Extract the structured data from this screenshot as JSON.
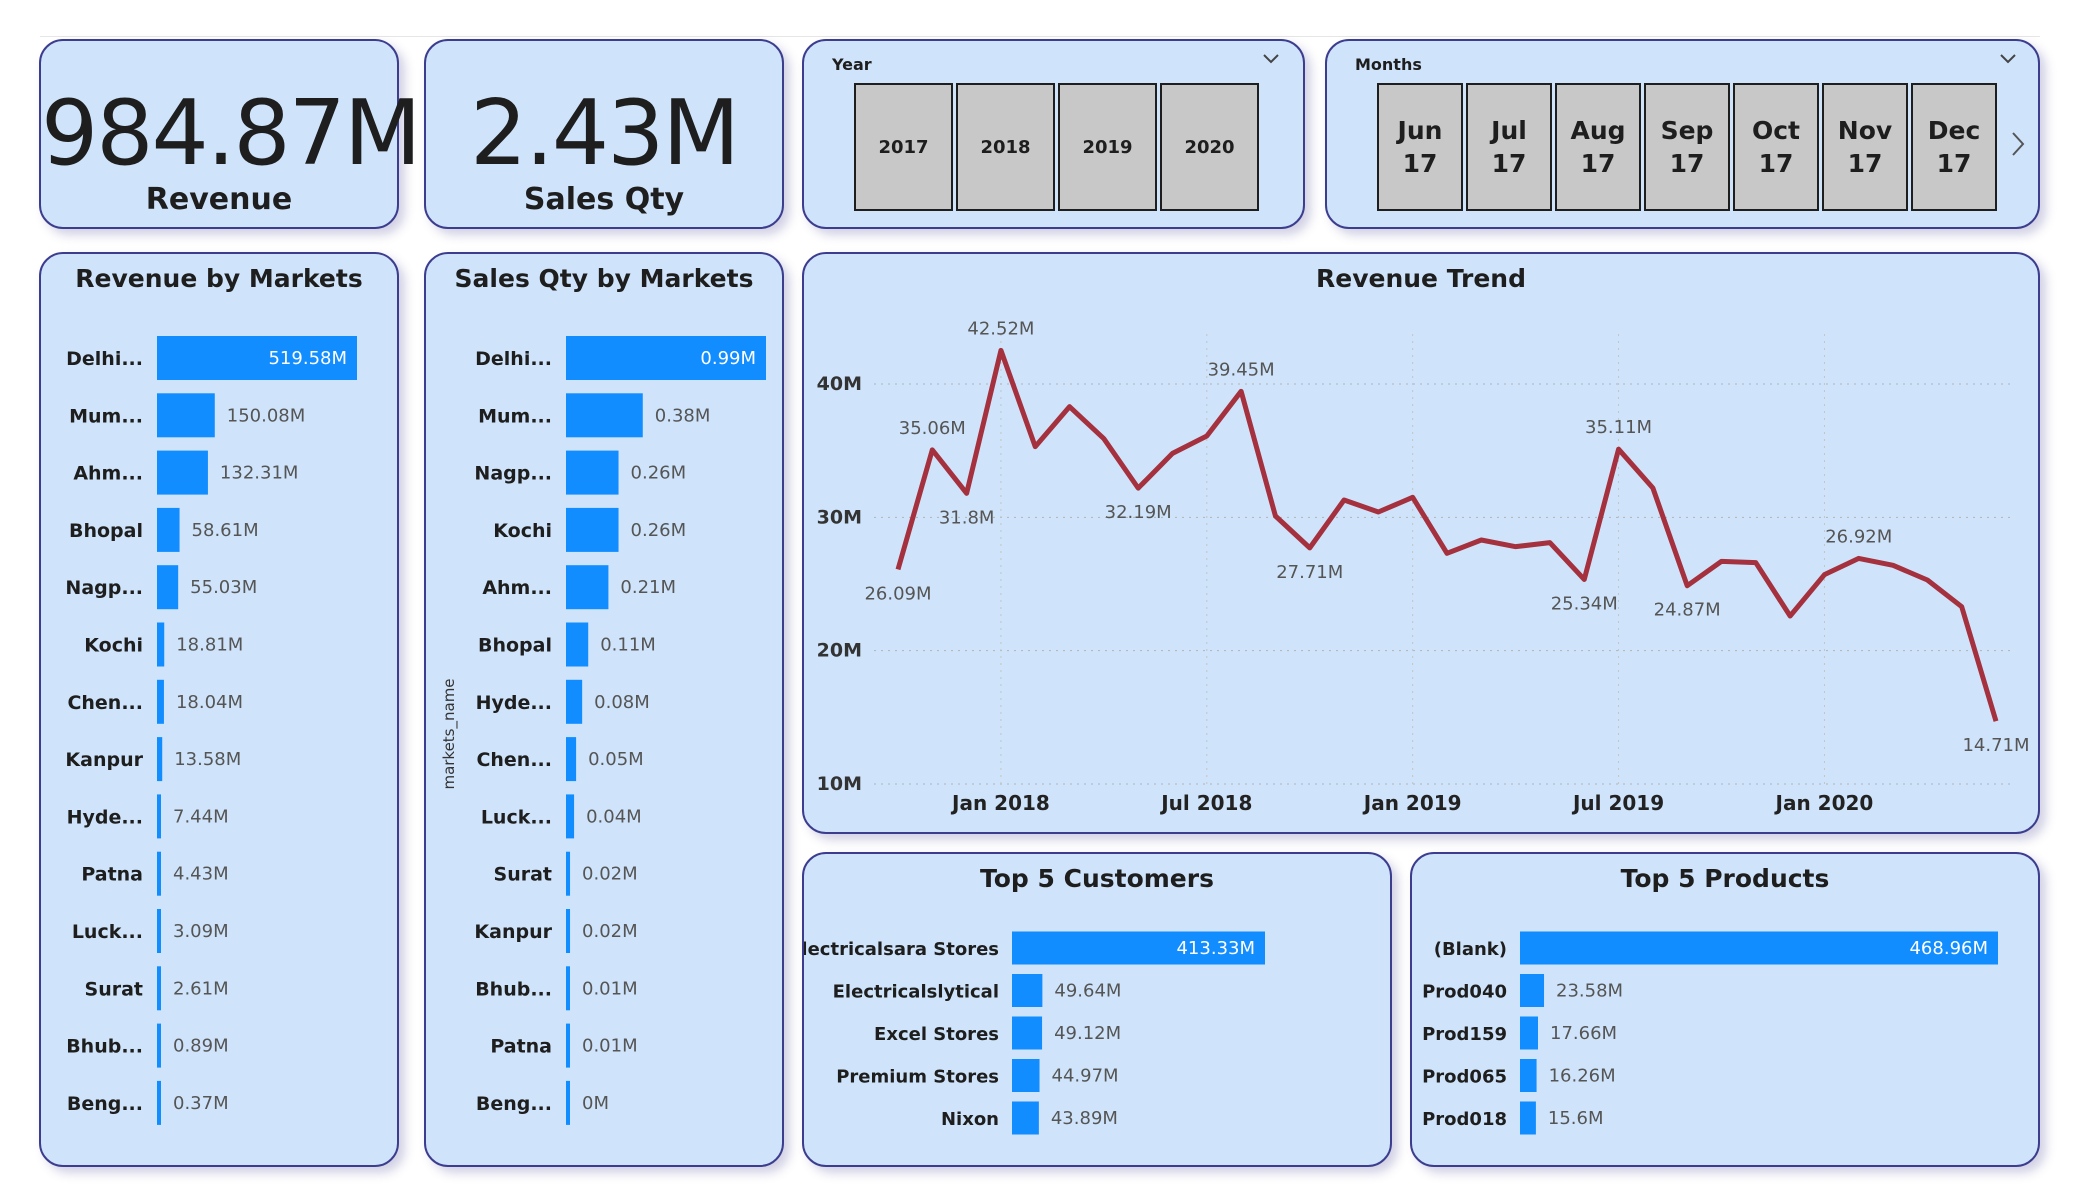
{
  "kpis": {
    "revenue": {
      "value": "984.87M",
      "label": "Revenue"
    },
    "sales_qty": {
      "value": "2.43M",
      "label": "Sales Qty"
    }
  },
  "slicers": {
    "year": {
      "title": "Year",
      "options": [
        "2017",
        "2018",
        "2019",
        "2020"
      ]
    },
    "months": {
      "title": "Months",
      "options": [
        {
          "month": "Jun",
          "year": "17"
        },
        {
          "month": "Jul",
          "year": "17"
        },
        {
          "month": "Aug",
          "year": "17"
        },
        {
          "month": "Sep",
          "year": "17"
        },
        {
          "month": "Oct",
          "year": "17"
        },
        {
          "month": "Nov",
          "year": "17"
        },
        {
          "month": "Dec",
          "year": "17"
        }
      ]
    }
  },
  "colors": {
    "bar": "#118dff",
    "line": "#a4313d",
    "card_bg": "#cfe4fb",
    "card_border": "#3d3d8f"
  },
  "chart_data": [
    {
      "id": "revenue_by_markets",
      "type": "bar",
      "orientation": "horizontal",
      "title": "Revenue by Markets",
      "categories": [
        "Delhi...",
        "Mum...",
        "Ahm...",
        "Bhopal",
        "Nagp...",
        "Kochi",
        "Chen...",
        "Kanpur",
        "Hyde...",
        "Patna",
        "Luck...",
        "Surat",
        "Bhub...",
        "Beng..."
      ],
      "values": [
        519.58,
        150.08,
        132.31,
        58.61,
        55.03,
        18.81,
        18.04,
        13.58,
        7.44,
        4.43,
        3.09,
        2.61,
        0.89,
        0.37
      ],
      "labels": [
        "519.58M",
        "150.08M",
        "132.31M",
        "58.61M",
        "55.03M",
        "18.81M",
        "18.04M",
        "13.58M",
        "7.44M",
        "4.43M",
        "3.09M",
        "2.61M",
        "0.89M",
        "0.37M"
      ],
      "unit": "M"
    },
    {
      "id": "sales_qty_by_markets",
      "type": "bar",
      "orientation": "horizontal",
      "title": "Sales Qty by Markets",
      "ylabel": "markets_name",
      "categories": [
        "Delhi...",
        "Mum...",
        "Nagp...",
        "Kochi",
        "Ahm...",
        "Bhopal",
        "Hyde...",
        "Chen...",
        "Luck...",
        "Surat",
        "Kanpur",
        "Bhub...",
        "Patna",
        "Beng..."
      ],
      "values": [
        0.99,
        0.38,
        0.26,
        0.26,
        0.21,
        0.11,
        0.08,
        0.05,
        0.04,
        0.02,
        0.02,
        0.01,
        0.01,
        0.0
      ],
      "labels": [
        "0.99M",
        "0.38M",
        "0.26M",
        "0.26M",
        "0.21M",
        "0.11M",
        "0.08M",
        "0.05M",
        "0.04M",
        "0.02M",
        "0.02M",
        "0.01M",
        "0.01M",
        "0M"
      ],
      "unit": "M"
    },
    {
      "id": "revenue_trend",
      "type": "line",
      "title": "Revenue Trend",
      "x": [
        "2017-10",
        "2017-11",
        "2017-12",
        "2018-01",
        "2018-02",
        "2018-03",
        "2018-04",
        "2018-05",
        "2018-06",
        "2018-07",
        "2018-08",
        "2018-09",
        "2018-10",
        "2018-11",
        "2018-12",
        "2019-01",
        "2019-02",
        "2019-03",
        "2019-04",
        "2019-05",
        "2019-06",
        "2019-07",
        "2019-08",
        "2019-09",
        "2019-10",
        "2019-11",
        "2019-12",
        "2020-01",
        "2020-02",
        "2020-03",
        "2020-04",
        "2020-05",
        "2020-06"
      ],
      "values": [
        26.09,
        35.06,
        31.8,
        42.52,
        35.3,
        38.3,
        35.9,
        32.19,
        34.8,
        36.1,
        39.45,
        30.1,
        27.71,
        31.3,
        30.4,
        31.5,
        27.3,
        28.3,
        27.8,
        28.1,
        25.34,
        35.11,
        32.2,
        24.87,
        26.7,
        26.6,
        22.6,
        25.7,
        26.92,
        26.4,
        25.3,
        23.3,
        14.71
      ],
      "point_labels": {
        "0": "26.09M",
        "1": "35.06M",
        "2": "31.8M",
        "3": "42.52M",
        "7": "32.19M",
        "10": "39.45M",
        "12": "27.71M",
        "20": "25.34M",
        "21": "35.11M",
        "23": "24.87M",
        "28": "26.92M",
        "32": "14.71M"
      },
      "ylim": [
        10,
        43
      ],
      "y_ticks": [
        {
          "v": 10,
          "label": "10M"
        },
        {
          "v": 20,
          "label": "20M"
        },
        {
          "v": 30,
          "label": "30M"
        },
        {
          "v": 40,
          "label": "40M"
        }
      ],
      "x_ticks": [
        {
          "i": 3,
          "label": "Jan 2018"
        },
        {
          "i": 9,
          "label": "Jul 2018"
        },
        {
          "i": 15,
          "label": "Jan 2019"
        },
        {
          "i": 21,
          "label": "Jul 2019"
        },
        {
          "i": 27,
          "label": "Jan 2020"
        }
      ],
      "grid": true
    },
    {
      "id": "top_5_customers",
      "type": "bar",
      "orientation": "horizontal",
      "title": "Top 5 Customers",
      "categories": [
        "Electricalsara Stores",
        "Electricalslytical",
        "Excel Stores",
        "Premium Stores",
        "Nixon"
      ],
      "values": [
        413.33,
        49.64,
        49.12,
        44.97,
        43.89
      ],
      "labels": [
        "413.33M",
        "49.64M",
        "49.12M",
        "44.97M",
        "43.89M"
      ],
      "unit": "M"
    },
    {
      "id": "top_5_products",
      "type": "bar",
      "orientation": "horizontal",
      "title": "Top 5 Products",
      "categories": [
        "(Blank)",
        "Prod040",
        "Prod159",
        "Prod065",
        "Prod018"
      ],
      "values": [
        468.96,
        23.58,
        17.66,
        16.26,
        15.6
      ],
      "labels": [
        "468.96M",
        "23.58M",
        "17.66M",
        "16.26M",
        "15.6M"
      ],
      "unit": "M"
    }
  ]
}
